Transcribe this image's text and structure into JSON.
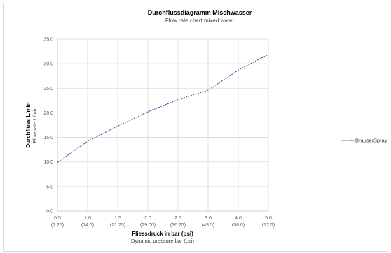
{
  "chart_data": {
    "type": "line",
    "title": "Durchflussdiagramm Mischwasser",
    "subtitle": "Flow rate chart mixed water",
    "xlabel": "Fliessdruck in bar (psi)",
    "xlabel_sub": "Dynamic pressure bar (psi)",
    "ylabel": "Durchfluss L/min",
    "ylabel_sub": "Flow rate L/min",
    "categories": [
      {
        "bar": "0.5",
        "psi": "(7.25)"
      },
      {
        "bar": "1.0",
        "psi": "(14.5)"
      },
      {
        "bar": "1.5",
        "psi": "(21.75)"
      },
      {
        "bar": "2.0",
        "psi": "(29.00)"
      },
      {
        "bar": "2.5",
        "psi": "(36.25)"
      },
      {
        "bar": "3.0",
        "psi": "(43.5)"
      },
      {
        "bar": "4.0",
        "psi": "(58.0)"
      },
      {
        "bar": "5.0",
        "psi": "(72.5)"
      }
    ],
    "y_ticks": [
      "0,0",
      "5,0",
      "10,0",
      "15,0",
      "20,0",
      "25,0",
      "30,0",
      "35,0"
    ],
    "ylim": [
      0,
      35
    ],
    "grid": true,
    "legend_position": "right",
    "series": [
      {
        "name": "Brause/Spray",
        "color": "#2f3f8f",
        "style": "dashed",
        "values": [
          9.9,
          14.2,
          17.3,
          20.2,
          22.7,
          24.6,
          28.7,
          31.9
        ]
      }
    ]
  }
}
